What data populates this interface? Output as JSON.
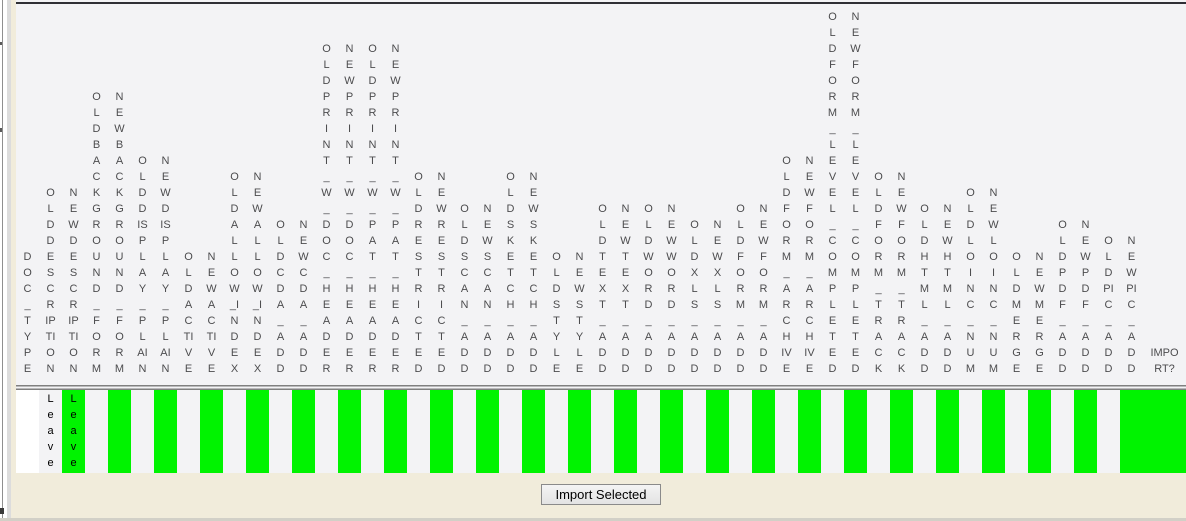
{
  "colors": {
    "highlight_green": "#00f300",
    "grid_background": "#f3f3f5",
    "panel_tan": "#f1ecdb",
    "header_text": "#4c4c4e",
    "cell_text": "#000000"
  },
  "table": {
    "columns": [
      {
        "label": "DOC_TYPE"
      },
      {
        "label": "OLDDESCRIPTION"
      },
      {
        "label": "NEWDESCRIPTION"
      },
      {
        "label": "OLDBACKGROUND_FORM"
      },
      {
        "label": "NEWBACKGROUND_FORM"
      },
      {
        "label": "OLDDISPLAY_PLAIN"
      },
      {
        "label": "NEWDISPLAY_PLAIN"
      },
      {
        "label": "OLDACTIVE"
      },
      {
        "label": "NEWACTIVE"
      },
      {
        "label": "OLDALLOW_INDEX"
      },
      {
        "label": "NEWALLOW_INDEX"
      },
      {
        "label": "OLDCDA_ADD"
      },
      {
        "label": "NEWCDA_ADD"
      },
      {
        "label": "OLDPRINT_W_DOC_HEADER"
      },
      {
        "label": "NEWPRINT_W_DOC_HEADER"
      },
      {
        "label": "OLDPRINT_W_PAT_HEADER"
      },
      {
        "label": "NEWPRINT_W_PAT_HEADER"
      },
      {
        "label": "OLDRESTRICTED"
      },
      {
        "label": "NEWRESTRICTED"
      },
      {
        "label": "OLDSCAN_ADD"
      },
      {
        "label": "NEWSCAN_ADD"
      },
      {
        "label": "OLDSKETCH_ADD"
      },
      {
        "label": "NEWSKETCH_ADD"
      },
      {
        "label": "OLDSTYLE"
      },
      {
        "label": "NEWSTYLE"
      },
      {
        "label": "OLDTEXT_ADD"
      },
      {
        "label": "NEWTEXT_ADD"
      },
      {
        "label": "OLDWORD_ADD"
      },
      {
        "label": "NEWWORD_ADD"
      },
      {
        "label": "OLDXLS_ADD"
      },
      {
        "label": "NEWXLS_ADD"
      },
      {
        "label": "OLDFORM_ADD"
      },
      {
        "label": "NEWFORM_ADD"
      },
      {
        "label": "OLDFORM_ARCHIVE"
      },
      {
        "label": "NEWFORM_ARCHIVE"
      },
      {
        "label": "OLDFORM_LEVEL_COMPLETED"
      },
      {
        "label": "NEWFORM_LEVEL_COMPLETED"
      },
      {
        "label": "OLDFORM_TRACK"
      },
      {
        "label": "NEWFORM_TRACK"
      },
      {
        "label": "OLDHTML_ADD"
      },
      {
        "label": "NEWHTML_ADD"
      },
      {
        "label": "OLDLOINC_NUM"
      },
      {
        "label": "NEWLOINC_NUM"
      },
      {
        "label": "OLDMERGE"
      },
      {
        "label": "NEWMERGE"
      },
      {
        "label": "OLDPDF_ADD"
      },
      {
        "label": "NEWPDF_ADD"
      },
      {
        "label": "OLDPIC_ADD"
      },
      {
        "label": "NEWPIC_ADD"
      },
      {
        "label": "IMPORT?"
      }
    ],
    "row": {
      "cells": [
        {
          "column": "DOC_TYPE",
          "value": "",
          "bg": "white"
        },
        {
          "column": "OLDDESCRIPTION",
          "value": "Leave",
          "bg": "plain"
        },
        {
          "column": "NEWDESCRIPTION",
          "value": "Leave",
          "bg": "green"
        },
        {
          "column": "OLDBACKGROUND_FORM",
          "value": "",
          "bg": "plain"
        },
        {
          "column": "NEWBACKGROUND_FORM",
          "value": "",
          "bg": "green"
        },
        {
          "column": "OLDDISPLAY_PLAIN",
          "value": "",
          "bg": "plain"
        },
        {
          "column": "NEWDISPLAY_PLAIN",
          "value": "",
          "bg": "green"
        },
        {
          "column": "OLDACTIVE",
          "value": "",
          "bg": "plain"
        },
        {
          "column": "NEWACTIVE",
          "value": "",
          "bg": "green"
        },
        {
          "column": "OLDALLOW_INDEX",
          "value": "",
          "bg": "plain"
        },
        {
          "column": "NEWALLOW_INDEX",
          "value": "",
          "bg": "green"
        },
        {
          "column": "OLDCDA_ADD",
          "value": "",
          "bg": "plain"
        },
        {
          "column": "NEWCDA_ADD",
          "value": "",
          "bg": "green"
        },
        {
          "column": "OLDPRINT_W_DOC_HEADER",
          "value": "",
          "bg": "plain"
        },
        {
          "column": "NEWPRINT_W_DOC_HEADER",
          "value": "",
          "bg": "green"
        },
        {
          "column": "OLDPRINT_W_PAT_HEADER",
          "value": "",
          "bg": "plain"
        },
        {
          "column": "NEWPRINT_W_PAT_HEADER",
          "value": "",
          "bg": "green"
        },
        {
          "column": "OLDRESTRICTED",
          "value": "",
          "bg": "plain"
        },
        {
          "column": "NEWRESTRICTED",
          "value": "",
          "bg": "green"
        },
        {
          "column": "OLDSCAN_ADD",
          "value": "",
          "bg": "plain"
        },
        {
          "column": "NEWSCAN_ADD",
          "value": "",
          "bg": "green"
        },
        {
          "column": "OLDSKETCH_ADD",
          "value": "",
          "bg": "plain"
        },
        {
          "column": "NEWSKETCH_ADD",
          "value": "",
          "bg": "green"
        },
        {
          "column": "OLDSTYLE",
          "value": "",
          "bg": "plain"
        },
        {
          "column": "NEWSTYLE",
          "value": "",
          "bg": "green"
        },
        {
          "column": "OLDTEXT_ADD",
          "value": "",
          "bg": "plain"
        },
        {
          "column": "NEWTEXT_ADD",
          "value": "",
          "bg": "green"
        },
        {
          "column": "OLDWORD_ADD",
          "value": "",
          "bg": "plain"
        },
        {
          "column": "NEWWORD_ADD",
          "value": "",
          "bg": "green"
        },
        {
          "column": "OLDXLS_ADD",
          "value": "",
          "bg": "plain"
        },
        {
          "column": "NEWXLS_ADD",
          "value": "",
          "bg": "green"
        },
        {
          "column": "OLDFORM_ADD",
          "value": "",
          "bg": "plain"
        },
        {
          "column": "NEWFORM_ADD",
          "value": "",
          "bg": "green"
        },
        {
          "column": "OLDFORM_ARCHIVE",
          "value": "",
          "bg": "plain"
        },
        {
          "column": "NEWFORM_ARCHIVE",
          "value": "",
          "bg": "green"
        },
        {
          "column": "OLDFORM_LEVEL_COMPLETED",
          "value": "",
          "bg": "plain"
        },
        {
          "column": "NEWFORM_LEVEL_COMPLETED",
          "value": "",
          "bg": "green"
        },
        {
          "column": "OLDFORM_TRACK",
          "value": "",
          "bg": "plain"
        },
        {
          "column": "NEWFORM_TRACK",
          "value": "",
          "bg": "green"
        },
        {
          "column": "OLDHTML_ADD",
          "value": "",
          "bg": "plain"
        },
        {
          "column": "NEWHTML_ADD",
          "value": "",
          "bg": "green"
        },
        {
          "column": "OLDLOINC_NUM",
          "value": "",
          "bg": "plain"
        },
        {
          "column": "NEWLOINC_NUM",
          "value": "",
          "bg": "green"
        },
        {
          "column": "OLDMERGE",
          "value": "",
          "bg": "plain"
        },
        {
          "column": "NEWMERGE",
          "value": "",
          "bg": "green"
        },
        {
          "column": "OLDPDF_ADD",
          "value": "",
          "bg": "plain"
        },
        {
          "column": "NEWPDF_ADD",
          "value": "",
          "bg": "green"
        },
        {
          "column": "OLDPIC_ADD",
          "value": "",
          "bg": "plain"
        },
        {
          "column": "NEWPIC_ADD",
          "value": "",
          "bg": "green"
        },
        {
          "column": "IMPORT?",
          "value": "",
          "bg": "green"
        }
      ]
    }
  },
  "footer": {
    "import_button_label": "Import Selected"
  }
}
